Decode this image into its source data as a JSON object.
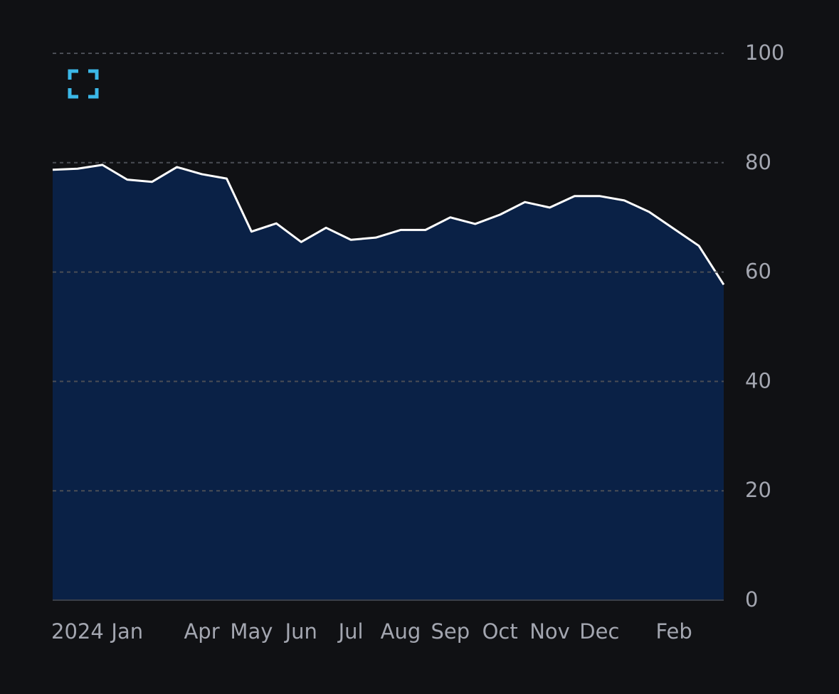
{
  "chart_data": {
    "type": "area",
    "categories": [
      null,
      "2024",
      null,
      "Jan",
      null,
      null,
      "Apr",
      null,
      "May",
      null,
      "Jun",
      null,
      "Jul",
      null,
      "Aug",
      null,
      "Sep",
      null,
      "Oct",
      null,
      "Nov",
      null,
      "Dec",
      null,
      null,
      "Feb",
      null,
      null
    ],
    "series": [
      {
        "color": "#ffffff",
        "fill": "#0a2146",
        "values": [
          78.7,
          78.9,
          79.6,
          76.9,
          76.5,
          79.2,
          77.9,
          77.1,
          67.4,
          68.9,
          65.5,
          68.1,
          65.9,
          66.3,
          67.7,
          67.7,
          70.0,
          68.8,
          70.5,
          72.8,
          71.8,
          73.9,
          73.9,
          73.1,
          71.0,
          67.9,
          64.8,
          57.7
        ]
      }
    ],
    "ylim": [
      0,
      100
    ],
    "yticks": [
      0,
      20,
      40,
      60,
      80,
      100
    ],
    "grid": true
  }
}
